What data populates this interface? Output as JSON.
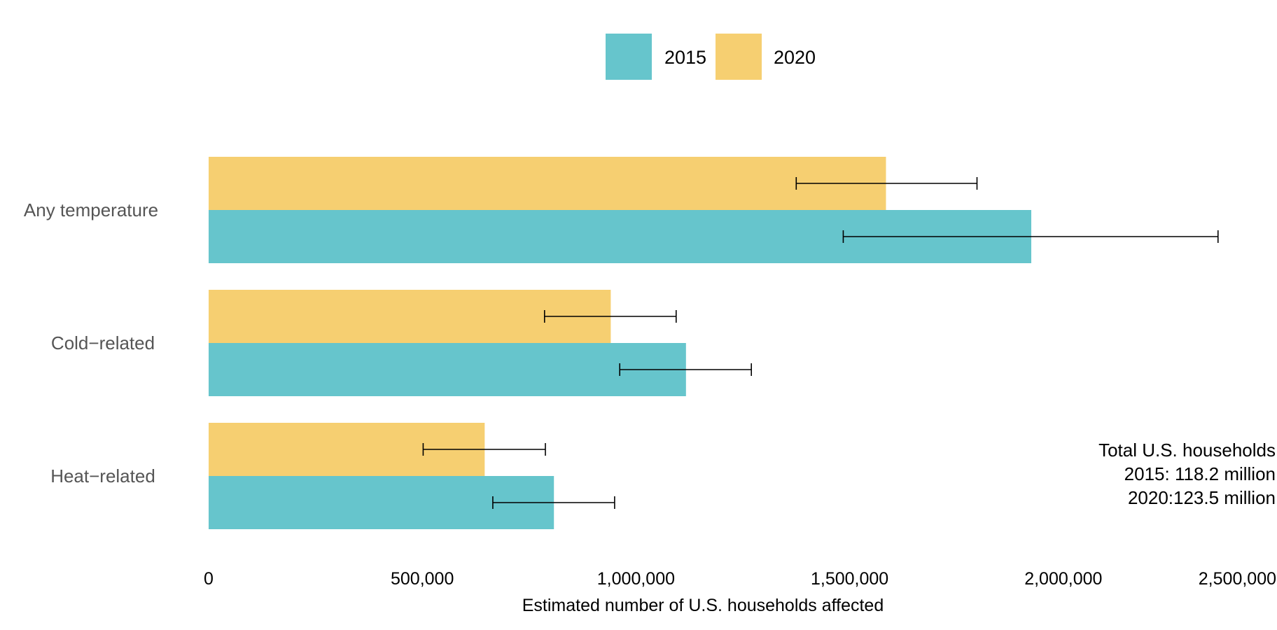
{
  "chart_data": {
    "type": "bar",
    "orientation": "horizontal",
    "categories": [
      "Any temperature",
      "Cold−related",
      "Heat−related"
    ],
    "series": [
      {
        "name": "2015",
        "color": "#66c5cc",
        "values": [
          1925000,
          1117000,
          808000
        ],
        "error_low": [
          1485000,
          962000,
          665000
        ],
        "error_high": [
          2362000,
          1270000,
          950000
        ]
      },
      {
        "name": "2020",
        "color": "#f6cf71",
        "values": [
          1585000,
          941000,
          646000
        ],
        "error_low": [
          1375000,
          786000,
          502000
        ],
        "error_high": [
          1798000,
          1094000,
          788000
        ]
      }
    ],
    "xlabel": "Estimated number of U.S. households affected",
    "xlim": [
      0,
      2500000
    ],
    "xticks": [
      0,
      500000,
      1000000,
      1500000,
      2000000,
      2500000
    ],
    "xtick_labels": [
      "0",
      "500,000",
      "1,000,000",
      "1,500,000",
      "2,000,000",
      "2,500,000"
    ],
    "grid": false,
    "legend": {
      "placement": "top-center",
      "entries": [
        "2015",
        "2020"
      ]
    },
    "annotation": {
      "lines": [
        "Total U.S. households",
        "2015: 118.2 million",
        "2020:123.5 million"
      ]
    }
  }
}
